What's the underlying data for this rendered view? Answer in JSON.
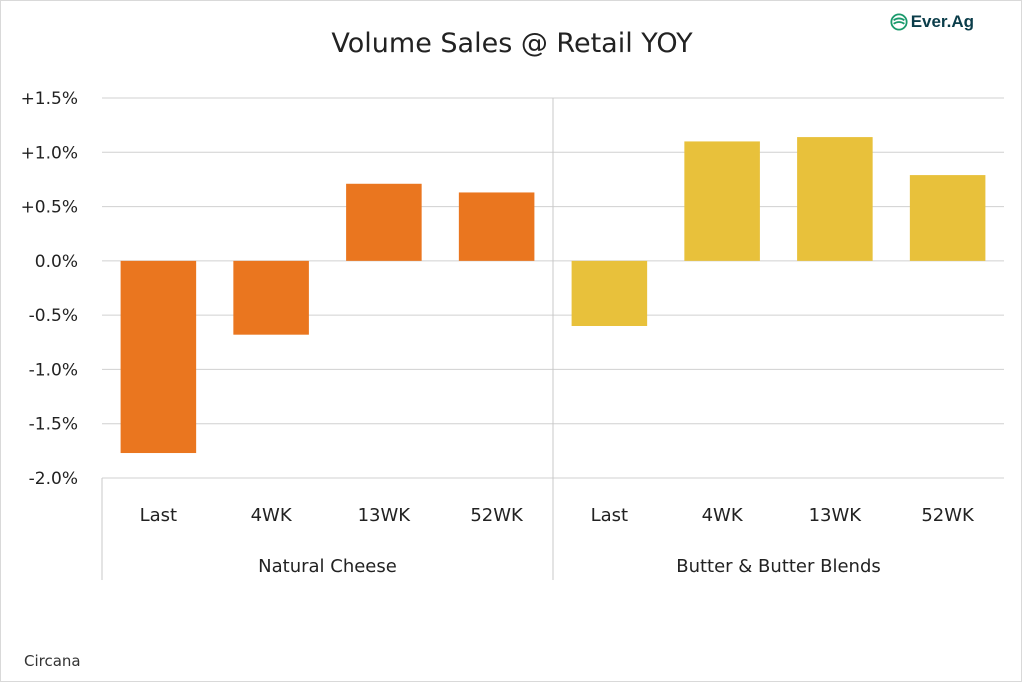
{
  "brand": {
    "name": "Ever.Ag",
    "accent": "#1a9a6c"
  },
  "source": "Circana",
  "chart_data": {
    "type": "bar",
    "title": "Volume Sales @ Retail YOY",
    "xlabel": "",
    "ylabel": "",
    "ylim": [
      -2.0,
      1.5
    ],
    "yticks": [
      "+1.5%",
      "+1.0%",
      "+0.5%",
      "0.0%",
      "-0.5%",
      "-1.0%",
      "-1.5%",
      "-2.0%"
    ],
    "ytick_values": [
      1.5,
      1.0,
      0.5,
      0.0,
      -0.5,
      -1.0,
      -1.5,
      -2.0
    ],
    "grid": true,
    "groups": [
      {
        "name": "Natural Cheese",
        "color": "#ea761f",
        "categories": [
          "Last",
          "4WK",
          "13WK",
          "52WK"
        ],
        "values": [
          -1.77,
          -0.68,
          0.71,
          0.63
        ]
      },
      {
        "name": "Butter & Butter Blends",
        "color": "#e8c13b",
        "categories": [
          "Last",
          "4WK",
          "13WK",
          "52WK"
        ],
        "values": [
          -0.6,
          1.1,
          1.14,
          0.79
        ]
      }
    ]
  }
}
